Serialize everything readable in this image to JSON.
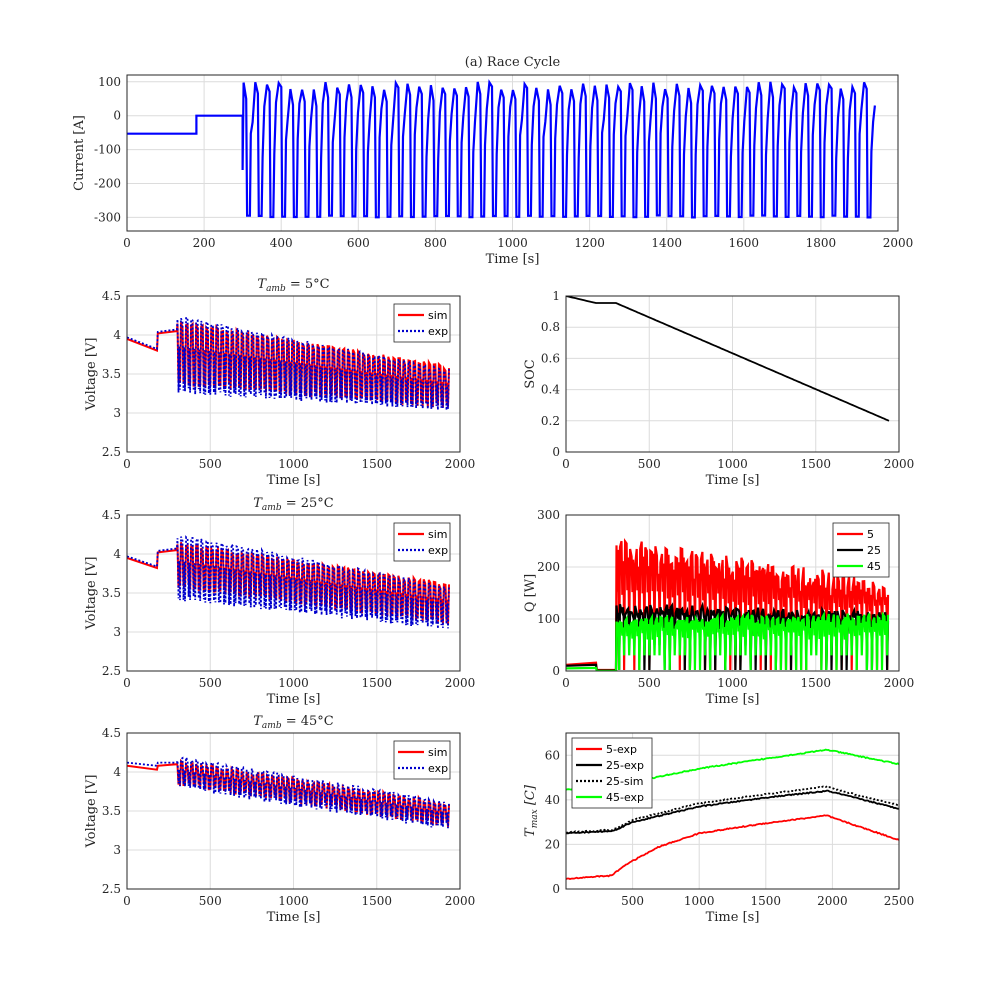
{
  "chart_data": [
    {
      "id": "race",
      "type": "line",
      "title": "(a) Race Cycle",
      "xlabel": "Time [s]",
      "ylabel": "Current [A]",
      "xlim": [
        0,
        2000
      ],
      "ylim": [
        -340,
        120
      ],
      "xticks": [
        0,
        200,
        400,
        600,
        800,
        1000,
        1200,
        1400,
        1600,
        1800,
        2000
      ],
      "yticks": [
        100,
        0,
        -100,
        -200,
        -300
      ],
      "series": [
        {
          "name": "current",
          "color": "#0000ff",
          "segments": [
            {
              "kind": "const",
              "x": [
                0,
                180
              ],
              "y": -53
            },
            {
              "kind": "const",
              "x": [
                180,
                300
              ],
              "y": 0
            },
            {
              "kind": "pulses",
              "x": [
                300,
                1940
              ],
              "high": 100,
              "low": -300,
              "count": 54
            }
          ]
        }
      ]
    },
    {
      "id": "v5",
      "type": "line",
      "title": "T_amb = 5°C",
      "title_main": "T",
      "title_sub": "amb",
      "title_rest": " = 5°C",
      "xlabel": "Time [s]",
      "ylabel": "Voltage [V]",
      "xlim": [
        0,
        2000
      ],
      "ylim": [
        2.5,
        4.5
      ],
      "xticks": [
        0,
        500,
        1000,
        1500,
        2000
      ],
      "yticks": [
        4.5,
        4,
        3.5,
        3,
        2.5
      ],
      "legend": [
        "sim",
        "exp"
      ],
      "series": [
        {
          "name": "sim",
          "color": "#ff0000",
          "style": "solid",
          "rest": [
            [
              0,
              3.95
            ],
            [
              180,
              3.8
            ],
            [
              185,
              4.02
            ],
            [
              300,
              4.05
            ]
          ],
          "upper": [
            [
              300,
              4.18
            ],
            [
              1940,
              3.6
            ]
          ],
          "lower": [
            [
              300,
              3.35
            ],
            [
              1940,
              3.05
            ]
          ]
        },
        {
          "name": "exp",
          "color": "#0000cc",
          "style": "dotted",
          "rest": [
            [
              0,
              3.97
            ],
            [
              180,
              3.82
            ],
            [
              185,
              4.04
            ],
            [
              300,
              4.07
            ]
          ],
          "upper": [
            [
              300,
              4.25
            ],
            [
              1940,
              3.55
            ]
          ],
          "lower": [
            [
              300,
              3.25
            ],
            [
              1940,
              3.02
            ]
          ]
        }
      ]
    },
    {
      "id": "soc",
      "type": "line",
      "xlabel": "Time [s]",
      "ylabel": "SOC",
      "xlim": [
        0,
        2000
      ],
      "ylim": [
        0,
        1
      ],
      "xticks": [
        0,
        500,
        1000,
        1500,
        2000
      ],
      "yticks": [
        1,
        0.8,
        0.6,
        0.4,
        0.2,
        0
      ],
      "series": [
        {
          "name": "SOC",
          "color": "#000000",
          "points": [
            [
              0,
              1.0
            ],
            [
              180,
              0.955
            ],
            [
              300,
              0.955
            ],
            [
              1940,
              0.2
            ]
          ]
        }
      ]
    },
    {
      "id": "v25",
      "type": "line",
      "title": "T_amb = 25°C",
      "title_main": "T",
      "title_sub": "amb",
      "title_rest": " = 25°C",
      "xlabel": "Time [s]",
      "ylabel": "Voltage [V]",
      "xlim": [
        0,
        2000
      ],
      "ylim": [
        2.5,
        4.5
      ],
      "xticks": [
        0,
        500,
        1000,
        1500,
        2000
      ],
      "yticks": [
        4.5,
        4,
        3.5,
        3,
        2.5
      ],
      "legend": [
        "sim",
        "exp"
      ],
      "series": [
        {
          "name": "sim",
          "color": "#ff0000",
          "style": "solid",
          "rest": [
            [
              0,
              3.95
            ],
            [
              180,
              3.82
            ],
            [
              185,
              4.02
            ],
            [
              300,
              4.05
            ]
          ],
          "upper": [
            [
              300,
              4.15
            ],
            [
              1940,
              3.62
            ]
          ],
          "lower": [
            [
              300,
              3.55
            ],
            [
              1940,
              3.08
            ]
          ]
        },
        {
          "name": "exp",
          "color": "#0000cc",
          "style": "dotted",
          "rest": [
            [
              0,
              3.97
            ],
            [
              180,
              3.84
            ],
            [
              185,
              4.04
            ],
            [
              300,
              4.07
            ]
          ],
          "upper": [
            [
              300,
              4.25
            ],
            [
              1940,
              3.58
            ]
          ],
          "lower": [
            [
              300,
              3.4
            ],
            [
              1940,
              3.02
            ]
          ]
        }
      ]
    },
    {
      "id": "q",
      "type": "line",
      "xlabel": "Time [s]",
      "ylabel": "Q [W]",
      "xlim": [
        0,
        2000
      ],
      "ylim": [
        0,
        300
      ],
      "xticks": [
        0,
        500,
        1000,
        1500,
        2000
      ],
      "yticks": [
        300,
        200,
        100,
        0
      ],
      "legend": [
        "5",
        "25",
        "45"
      ],
      "series": [
        {
          "name": "5",
          "color": "#ff0000",
          "rest": [
            [
              0,
              12
            ],
            [
              180,
              16
            ],
            [
              185,
              2
            ],
            [
              300,
              2
            ]
          ],
          "upper": [
            [
              330,
              255
            ],
            [
              1940,
              175
            ]
          ],
          "mid": [
            [
              330,
              140
            ],
            [
              1940,
              110
            ]
          ]
        },
        {
          "name": "25",
          "color": "#000000",
          "rest": [
            [
              0,
              10
            ],
            [
              180,
              12
            ],
            [
              185,
              1
            ],
            [
              300,
              1
            ]
          ],
          "upper": [
            [
              330,
              130
            ],
            [
              1940,
              115
            ]
          ],
          "mid": [
            [
              330,
              100
            ],
            [
              1940,
              95
            ]
          ]
        },
        {
          "name": "45",
          "color": "#00ff00",
          "rest": [
            [
              0,
              5
            ],
            [
              180,
              6
            ],
            [
              185,
              0
            ],
            [
              300,
              0
            ]
          ],
          "upper": [
            [
              330,
              105
            ],
            [
              1940,
              112
            ]
          ],
          "mid": [
            [
              330,
              60
            ],
            [
              1940,
              60
            ]
          ]
        }
      ]
    },
    {
      "id": "v45",
      "type": "line",
      "title": "T_amb = 45°C",
      "title_main": "T",
      "title_sub": "amb",
      "title_rest": " = 45°C",
      "xlabel": "Time [s]",
      "ylabel": "Voltage [V]",
      "xlim": [
        0,
        2000
      ],
      "ylim": [
        2.5,
        4.5
      ],
      "xticks": [
        0,
        500,
        1000,
        1500,
        2000
      ],
      "yticks": [
        4.5,
        4,
        3.5,
        3,
        2.5
      ],
      "legend": [
        "sim",
        "exp"
      ],
      "series": [
        {
          "name": "sim",
          "color": "#ff0000",
          "style": "solid",
          "rest": [
            [
              0,
              4.08
            ],
            [
              180,
              4.03
            ],
            [
              185,
              4.08
            ],
            [
              300,
              4.1
            ]
          ],
          "upper": [
            [
              300,
              4.15
            ],
            [
              1940,
              3.6
            ]
          ],
          "lower": [
            [
              300,
              3.82
            ],
            [
              1940,
              3.28
            ]
          ]
        },
        {
          "name": "exp",
          "color": "#0000cc",
          "style": "dotted",
          "rest": [
            [
              0,
              4.12
            ],
            [
              180,
              4.08
            ],
            [
              185,
              4.12
            ],
            [
              300,
              4.12
            ]
          ],
          "upper": [
            [
              300,
              4.2
            ],
            [
              1940,
              3.62
            ]
          ],
          "lower": [
            [
              300,
              3.78
            ],
            [
              1940,
              3.25
            ]
          ]
        }
      ]
    },
    {
      "id": "tmax",
      "type": "line",
      "xlabel": "Time [s]",
      "ylabel": "T_max [C]",
      "ylabel_main": "T",
      "ylabel_sub": "max",
      "ylabel_rest": " [C]",
      "xlim": [
        0,
        2500
      ],
      "ylim": [
        0,
        70
      ],
      "xticks": [
        500,
        1000,
        1500,
        2000,
        2500
      ],
      "yticks": [
        60,
        40,
        20,
        0
      ],
      "legend": [
        "5-exp",
        "25-exp",
        "25-sim",
        "45-exp"
      ],
      "series": [
        {
          "name": "5-exp",
          "color": "#ff0000",
          "style": "solid",
          "points": [
            [
              0,
              4.5
            ],
            [
              200,
              5.5
            ],
            [
              340,
              6
            ],
            [
              450,
              11
            ],
            [
              700,
              19
            ],
            [
              1000,
              25
            ],
            [
              1500,
              29.5
            ],
            [
              1960,
              33
            ],
            [
              2000,
              32
            ],
            [
              2500,
              22
            ]
          ]
        },
        {
          "name": "25-exp",
          "color": "#000000",
          "style": "solid",
          "points": [
            [
              0,
              25
            ],
            [
              350,
              26
            ],
            [
              500,
              30
            ],
            [
              1000,
              37
            ],
            [
              1500,
              41
            ],
            [
              1960,
              44
            ],
            [
              2000,
              43.5
            ],
            [
              2500,
              36
            ]
          ]
        },
        {
          "name": "25-sim",
          "color": "#000000",
          "style": "dotted",
          "points": [
            [
              0,
              25.5
            ],
            [
              350,
              26.5
            ],
            [
              500,
              31
            ],
            [
              1000,
              38.5
            ],
            [
              1500,
              42.5
            ],
            [
              1960,
              46
            ],
            [
              2000,
              45
            ],
            [
              2500,
              37.5
            ]
          ]
        },
        {
          "name": "45-exp",
          "color": "#00ff00",
          "style": "solid",
          "points": [
            [
              0,
              44.5
            ],
            [
              500,
              48
            ],
            [
              1000,
              54
            ],
            [
              1500,
              58.5
            ],
            [
              1960,
              62.5
            ],
            [
              2000,
              62
            ],
            [
              2500,
              56
            ]
          ]
        }
      ]
    }
  ]
}
